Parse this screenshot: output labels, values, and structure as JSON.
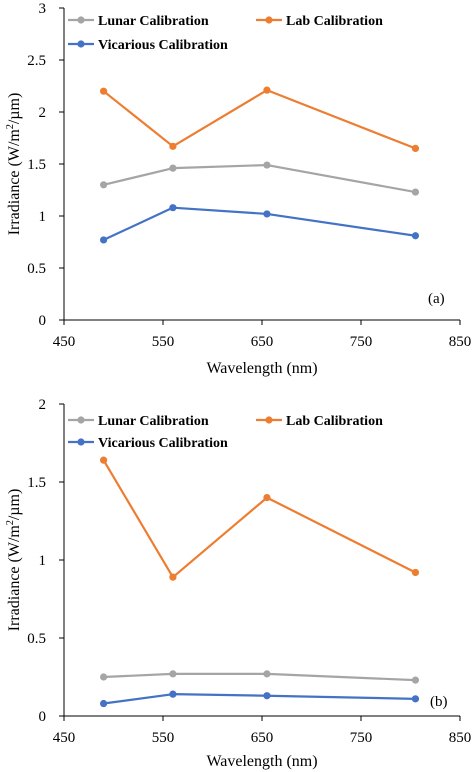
{
  "chart_data": [
    {
      "type": "line",
      "panel_label": "(a)",
      "xlabel": "Wavelength (nm)",
      "ylabel_main": "Irradiance  (W/m",
      "ylabel_sup": "2",
      "ylabel_tail": "/µm)",
      "xlim": [
        450,
        850
      ],
      "ylim": [
        0,
        3
      ],
      "x_ticks": [
        "450",
        "550",
        "650",
        "750",
        "850"
      ],
      "y_ticks": [
        "0",
        "0.5",
        "1",
        "1.5",
        "2",
        "2.5",
        "3"
      ],
      "legend_placement": "top",
      "grid": false,
      "x": [
        490,
        560,
        655,
        805
      ],
      "series": [
        {
          "name": "Lunar Calibration",
          "color": "#a5a5a5",
          "values": [
            1.3,
            1.46,
            1.49,
            1.23
          ]
        },
        {
          "name": "Lab Calibration",
          "color": "#ed7d31",
          "values": [
            2.2,
            1.67,
            2.21,
            1.65
          ]
        },
        {
          "name": "Vicarious Calibration",
          "color": "#4472c4",
          "values": [
            0.77,
            1.08,
            1.02,
            0.81
          ]
        }
      ]
    },
    {
      "type": "line",
      "panel_label": "(b)",
      "xlabel": "Wavelength (nm)",
      "ylabel_main": "Irradiance  (W/m",
      "ylabel_sup": "2",
      "ylabel_tail": "/µm)",
      "xlim": [
        450,
        850
      ],
      "ylim": [
        0,
        2
      ],
      "x_ticks": [
        "450",
        "550",
        "650",
        "750",
        "850"
      ],
      "y_ticks": [
        "0",
        "0.5",
        "1",
        "1.5",
        "2"
      ],
      "legend_placement": "top",
      "grid": false,
      "x": [
        490,
        560,
        655,
        805
      ],
      "series": [
        {
          "name": "Lunar Calibration",
          "color": "#a5a5a5",
          "values": [
            0.25,
            0.27,
            0.27,
            0.23
          ]
        },
        {
          "name": "Lab Calibration",
          "color": "#ed7d31",
          "values": [
            1.64,
            0.89,
            1.4,
            0.92
          ]
        },
        {
          "name": "Vicarious Calibration",
          "color": "#4472c4",
          "values": [
            0.08,
            0.14,
            0.13,
            0.11
          ]
        }
      ]
    }
  ]
}
